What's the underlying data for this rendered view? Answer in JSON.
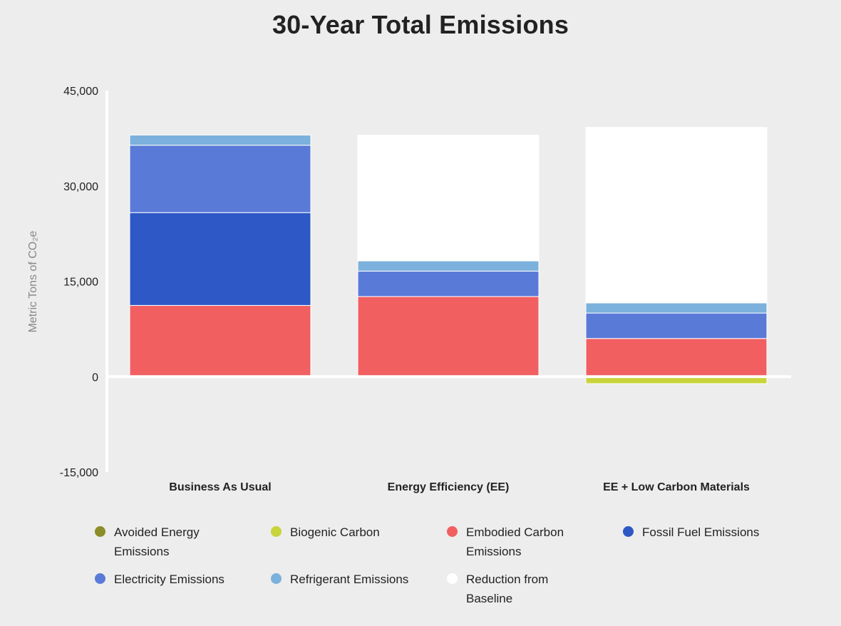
{
  "chart_data": {
    "type": "bar",
    "stacked": true,
    "title": "30-Year Total Emissions",
    "ylabel": "Metric Tons of CO₂e",
    "ylim": [
      -15000,
      45000
    ],
    "yticks": [
      45000,
      30000,
      15000,
      0,
      -15000
    ],
    "ytick_labels": [
      "45,000",
      "30,000",
      "15,000",
      "0",
      "-15,000"
    ],
    "categories": [
      "Business As Usual",
      "Energy Efficiency (EE)",
      "EE + Low Carbon Materials"
    ],
    "series": [
      {
        "name": "Biogenic Carbon",
        "color": "#c8d43a",
        "values": [
          0,
          0,
          -1100
        ]
      },
      {
        "name": "Embodied Carbon Emissions",
        "color": "#f25f61",
        "values": [
          11200,
          12600,
          6000
        ]
      },
      {
        "name": "Fossil Fuel Emissions",
        "color": "#2e58c6",
        "values": [
          14600,
          0,
          0
        ]
      },
      {
        "name": "Electricity Emissions",
        "color": "#5a7ad8",
        "values": [
          10600,
          4000,
          4000
        ]
      },
      {
        "name": "Refrigerant Emissions",
        "color": "#7bb1dc",
        "values": [
          1600,
          1600,
          1600
        ]
      },
      {
        "name": "Reduction from Baseline",
        "color": "#ffffff",
        "values": [
          0,
          19800,
          27600
        ]
      },
      {
        "name": "Avoided Energy Emissions",
        "color": "#8c8c28",
        "values": [
          0,
          0,
          0
        ]
      }
    ],
    "legend_position": "bottom",
    "grid": false
  },
  "legend": [
    {
      "label": "Avoided Energy Emissions",
      "color": "#8c8c28"
    },
    {
      "label": "Biogenic Carbon",
      "color": "#c8d43a"
    },
    {
      "label": "Embodied Carbon Emissions",
      "color": "#f25f61"
    },
    {
      "label": "Fossil Fuel Emissions",
      "color": "#2e58c6"
    },
    {
      "label": "Electricity Emissions",
      "color": "#5a7ad8"
    },
    {
      "label": "Refrigerant Emissions",
      "color": "#7bb1dc"
    },
    {
      "label": "Reduction from Baseline",
      "color": "#ffffff"
    }
  ]
}
